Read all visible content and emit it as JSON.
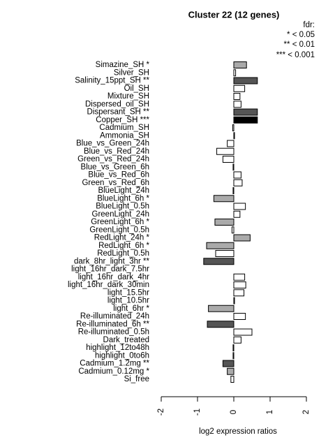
{
  "chart_data": {
    "type": "hbar",
    "title": "Cluster 22 (12 genes)",
    "x_label": "log2 expression ratios",
    "legend_title": "fdr:",
    "legend_entries": [
      "* < 0.05",
      "** < 0.01",
      "*** < 0.001"
    ],
    "categories": [
      "Simazine_SH *",
      "Silver_SH",
      "Salinity_15ppt_SH **",
      "Oil_SH",
      "Mixture_SH",
      "Dispersed_oil_SH",
      "Dispersant_SH **",
      "Copper_SH ***",
      "Cadmium_SH",
      "Ammonia_SH",
      "Blue_vs_Green_24h",
      "Blue_vs_Red_24h",
      "Green_vs_Red_24h",
      "Blue_vs_Green_6h",
      "Blue_vs_Red_6h",
      "Green_vs_Red_6h",
      "BlueLight_24h",
      "BlueLight_6h *",
      "BlueLight_0.5h",
      "GreenLight_24h",
      "GreenLight_6h *",
      "GreenLight_0.5h",
      "RedLight_24h *",
      "RedLight_6h *",
      "RedLight_0.5h",
      "dark_8hr_light_3hr **",
      "light_16hr_dark_7.5hr",
      "light_16hr_dark_4hr",
      "light_16hr_dark_30min",
      "light_15.5hr",
      "light_10.5hr",
      "light_6hr *",
      "Re-illuminated_24h",
      "Re-illuminated_6h **",
      "Re-illuminated_0.5h",
      "Dark_treated",
      "highlight_12to48h",
      "highlight_0to6h",
      "Cadmium_1.2mg **",
      "Cadmium_0.12mg *",
      "Si_free"
    ],
    "values": [
      0.35,
      0.05,
      0.65,
      0.3,
      0.17,
      0.2,
      0.65,
      0.65,
      -0.03,
      0.02,
      -0.18,
      -0.47,
      -0.3,
      -0.02,
      0.2,
      0.23,
      -0.02,
      -0.55,
      0.32,
      0.17,
      -0.52,
      -0.05,
      0.45,
      -0.75,
      -0.5,
      -0.83,
      0.0,
      0.3,
      0.33,
      0.28,
      0.02,
      -0.7,
      0.32,
      -0.73,
      0.5,
      0.2,
      -0.02,
      -0.02,
      -0.3,
      -0.18,
      -0.08
    ],
    "colors": [
      "#aaaaaa",
      "#ffffff",
      "#555555",
      "#ffffff",
      "#ffffff",
      "#ffffff",
      "#555555",
      "#000000",
      "#ffffff",
      "#ffffff",
      "#ffffff",
      "#ffffff",
      "#ffffff",
      "#ffffff",
      "#ffffff",
      "#ffffff",
      "#ffffff",
      "#aaaaaa",
      "#ffffff",
      "#ffffff",
      "#aaaaaa",
      "#ffffff",
      "#aaaaaa",
      "#aaaaaa",
      "#ffffff",
      "#555555",
      "#ffffff",
      "#ffffff",
      "#ffffff",
      "#ffffff",
      "#ffffff",
      "#aaaaaa",
      "#ffffff",
      "#555555",
      "#ffffff",
      "#ffffff",
      "#ffffff",
      "#ffffff",
      "#555555",
      "#aaaaaa",
      "#ffffff"
    ],
    "xlim": [
      -2,
      2
    ],
    "xticks": [
      -2,
      -1,
      0,
      1,
      2
    ]
  }
}
